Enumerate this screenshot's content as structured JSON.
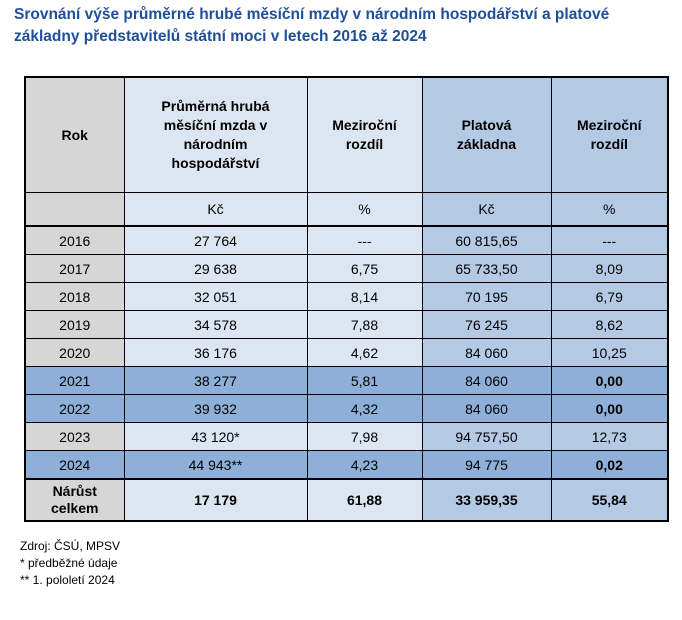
{
  "title": "Srovnání výše průměrné hrubé měsíční mzdy v národním hospodářství a platové základny představitelů státní moci v letech 2016 až 2024",
  "colors": {
    "title": "#1f4e9a",
    "grey_cell": "#d6d6d6",
    "light_blue_cell": "#dce6f2",
    "blue_cell": "#b4c9e4",
    "highlight_row": "#8eb0d8"
  },
  "table": {
    "headers": [
      "Rok",
      "Průměrná hrubá měsíční mzda v národním hospodářství",
      "Meziroční rozdíl",
      "Platová základna",
      "Meziroční rozdíl"
    ],
    "units": [
      "",
      "Kč",
      "%",
      "Kč",
      "%"
    ],
    "rows": [
      {
        "cells": [
          "2016",
          "27 764",
          "---",
          "60 815,65",
          "---"
        ],
        "highlight": false,
        "bold_last": false
      },
      {
        "cells": [
          "2017",
          "29 638",
          "6,75",
          "65 733,50",
          "8,09"
        ],
        "highlight": false,
        "bold_last": false
      },
      {
        "cells": [
          "2018",
          "32 051",
          "8,14",
          "70 195",
          "6,79"
        ],
        "highlight": false,
        "bold_last": false
      },
      {
        "cells": [
          "2019",
          "34 578",
          "7,88",
          "76 245",
          "8,62"
        ],
        "highlight": false,
        "bold_last": false
      },
      {
        "cells": [
          "2020",
          "36 176",
          "4,62",
          "84 060",
          "10,25"
        ],
        "highlight": false,
        "bold_last": false
      },
      {
        "cells": [
          "2021",
          "38 277",
          "5,81",
          "84 060",
          "0,00"
        ],
        "highlight": true,
        "bold_last": true
      },
      {
        "cells": [
          "2022",
          "39 932",
          "4,32",
          "84 060",
          "0,00"
        ],
        "highlight": true,
        "bold_last": true
      },
      {
        "cells": [
          "2023",
          "43 120*",
          "7,98",
          "94 757,50",
          "12,73"
        ],
        "highlight": false,
        "bold_last": false
      },
      {
        "cells": [
          "2024",
          "44 943**",
          "4,23",
          "94 775",
          "0,02"
        ],
        "highlight": true,
        "bold_last": true
      }
    ],
    "total": [
      "Nárůst celkem",
      "17 179",
      "61,88",
      "33 959,35",
      "55,84"
    ]
  },
  "notes": [
    "Zdroj: ČSÚ, MPSV",
    " * předběžné údaje",
    "** 1. pololetí 2024"
  ]
}
